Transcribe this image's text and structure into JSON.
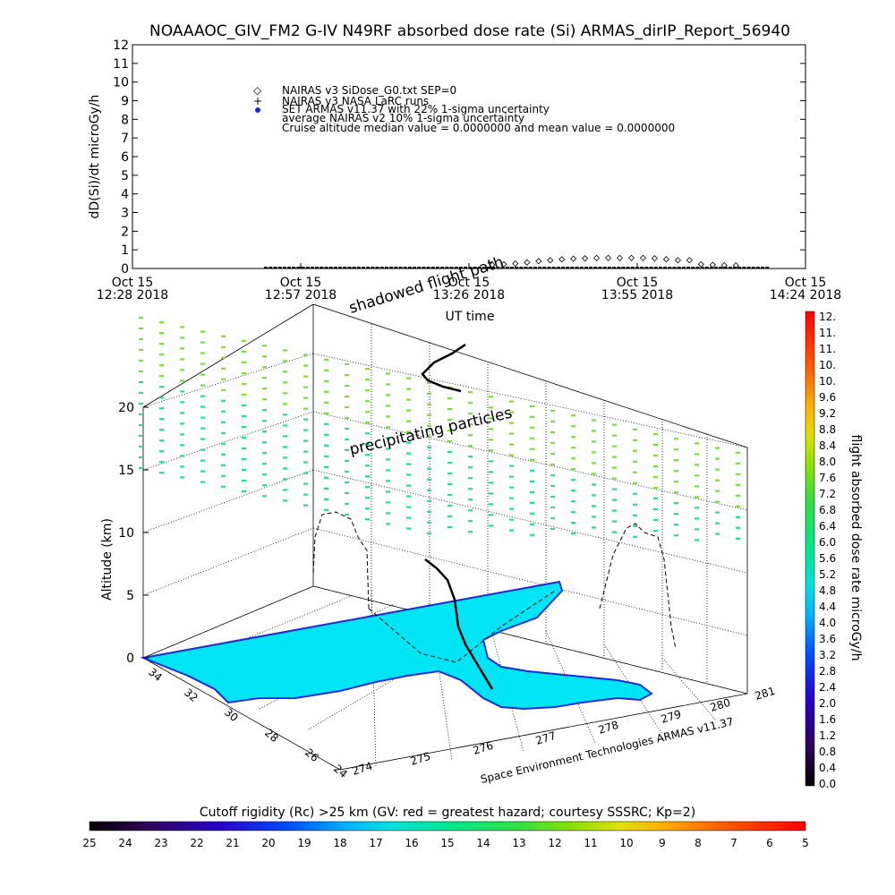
{
  "title": "NOAAAOC_GIV_FM2 G-IV    N49RF   absorbed dose rate (Si) ARMAS_dirIP_Report_56940",
  "chart_data": [
    {
      "type": "scatter",
      "ylabel": "dD(Si)/dt microGy/h",
      "xlabel": "UT time",
      "ylim": [
        0,
        12
      ],
      "yticks": [
        "0",
        "1",
        "2",
        "3",
        "4",
        "5",
        "6",
        "7",
        "8",
        "9",
        "10",
        "11",
        "12"
      ],
      "xticks": [
        {
          "date": "Oct 15",
          "time": "12:28 2018"
        },
        {
          "date": "Oct 15",
          "time": "12:57 2018"
        },
        {
          "date": "Oct 15",
          "time": "13:26 2018"
        },
        {
          "date": "Oct 15",
          "time": "13:55 2018"
        },
        {
          "date": "Oct 15",
          "time": "14:24 2018"
        }
      ],
      "xrange_minutes": [
        0,
        116
      ],
      "legend": [
        "NAIRAS v3 SiDose_G0.txt SEP=0",
        "NAIRAS v3 NASA LaRC runs",
        "SET ARMAS v11.37 with 22% 1-sigma uncertainty",
        "average NAIRAS v2 10% 1-sigma uncertainty",
        "Cruise altitude median value = 0.0000000 and mean value = 0.0000000"
      ],
      "legend_position": "top-left",
      "series": [
        {
          "name": "NAIRAS v3 SiDose_G0.txt SEP=0",
          "marker": "diamond",
          "x": [
            62,
            64,
            66,
            68,
            70,
            72,
            74,
            76,
            78,
            80,
            82,
            84,
            86,
            88,
            90,
            92,
            94,
            96,
            98,
            100,
            102,
            104
          ],
          "y": [
            0.05,
            0.08,
            0.12,
            0.18,
            0.25,
            0.3,
            0.35,
            0.38,
            0.4,
            0.42,
            0.42,
            0.42,
            0.42,
            0.42,
            0.4,
            0.35,
            0.3,
            0.3,
            0.08,
            0.05,
            0.03,
            0.02
          ]
        },
        {
          "name": "ARMAS baseline",
          "marker": "dash",
          "x_start": 23,
          "x_end": 110,
          "y": 0
        }
      ]
    },
    {
      "type": "scatter",
      "ylabel": "Altitude (km)",
      "zticks": [
        "0",
        "5",
        "10",
        "15",
        "20"
      ],
      "lat_ticks": [
        "34",
        "32",
        "30",
        "28",
        "26",
        "24"
      ],
      "lon_ticks": [
        "274",
        "275",
        "276",
        "277",
        "278",
        "279",
        "280",
        "281"
      ],
      "annotations": [
        "shadowed flight path",
        "precipitating particles",
        "flight path"
      ],
      "credit": "Space Environment Technologies ARMAS v11.37",
      "colorbar": {
        "label": "flight absorbed dose rate microGy/h",
        "ticks": [
          "12.",
          "11.",
          "11.",
          "10.",
          "10.",
          "9.6",
          "9.2",
          "8.8",
          "8.4",
          "8.0",
          "7.6",
          "7.2",
          "6.8",
          "6.4",
          "6.0",
          "5.6",
          "5.2",
          "4.8",
          "4.4",
          "4.0",
          "3.6",
          "3.2",
          "2.8",
          "2.4",
          "2.0",
          "1.6",
          "1.2",
          "0.8",
          "0.4",
          "0.0"
        ],
        "range": [
          0,
          12
        ]
      }
    }
  ],
  "rigidity_bar": {
    "title": "Cutoff rigidity (Rc) >25 km (GV: red = greatest hazard; courtesy SSSRC; Kp=2)",
    "ticks": [
      "25",
      "24",
      "23",
      "22",
      "21",
      "20",
      "19",
      "18",
      "17",
      "16",
      "15",
      "14",
      "13",
      "12",
      "11",
      "10",
      "9",
      "8",
      "7",
      "6",
      "5"
    ]
  },
  "colors": {
    "land": "#00e5f5",
    "coast": "#1a2ad8",
    "dose_low_green": "#7ddc3a",
    "dose_teal": "#20e08a",
    "baseline": "#000000"
  }
}
